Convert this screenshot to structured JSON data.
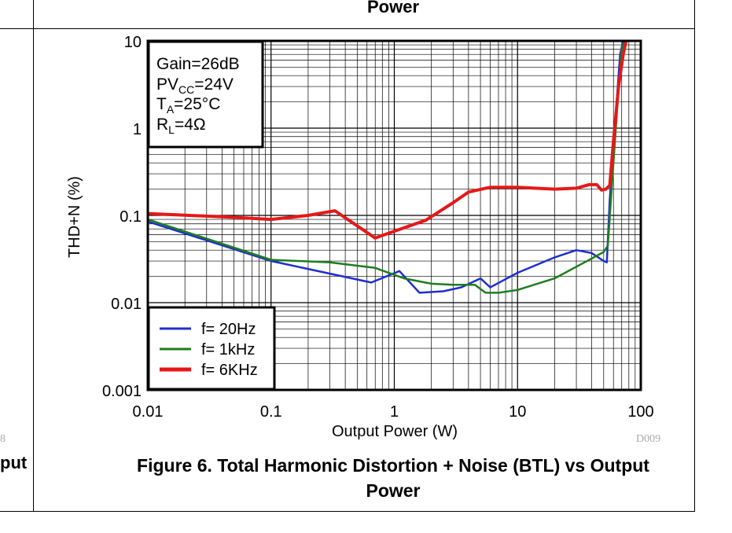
{
  "top_caption": "Power",
  "left_cut_word": "put",
  "left_cut_code": "8",
  "right_code": "D009",
  "caption": {
    "line1": "Figure 6. Total Harmonic Distortion + Noise (BTL) vs Output",
    "line2": "Power"
  },
  "chart_data": {
    "type": "line",
    "xlabel": "Output Power (W)",
    "ylabel": "THD+N (%)",
    "x_scale": "log",
    "y_scale": "log",
    "xlim": [
      0.01,
      100
    ],
    "ylim": [
      0.001,
      10
    ],
    "x_ticks": [
      "0.01",
      "0.1",
      "1",
      "10",
      "100"
    ],
    "y_ticks": [
      "0.001",
      "0.01",
      "0.1",
      "1",
      "10"
    ],
    "grid": true,
    "conditions": {
      "gain": "Gain=26dB",
      "pvcc_prefix": "PV",
      "pvcc_sub": "CC",
      "pvcc_value": "=24V",
      "ta_prefix": "T",
      "ta_sub": "A",
      "ta_value": "=25°C",
      "rl_prefix": "R",
      "rl_sub": "L",
      "rl_value": "=4Ω"
    },
    "legend_position": "bottom-left",
    "series": [
      {
        "name": "f= 20Hz",
        "color": "#1f2fcf",
        "points": [
          [
            0.01,
            0.085
          ],
          [
            0.1,
            0.03
          ],
          [
            0.65,
            0.017
          ],
          [
            1.1,
            0.023
          ],
          [
            1.6,
            0.013
          ],
          [
            2.5,
            0.0135
          ],
          [
            3.5,
            0.015
          ],
          [
            5,
            0.019
          ],
          [
            6,
            0.015
          ],
          [
            10,
            0.022
          ],
          [
            20,
            0.033
          ],
          [
            30,
            0.04
          ],
          [
            40,
            0.037
          ],
          [
            50,
            0.03
          ],
          [
            53,
            0.029
          ],
          [
            56,
            0.15
          ],
          [
            62,
            1.2
          ],
          [
            68,
            7
          ],
          [
            72,
            12
          ]
        ]
      },
      {
        "name": "f= 1kHz",
        "color": "#1e7d1e",
        "points": [
          [
            0.01,
            0.09
          ],
          [
            0.1,
            0.031
          ],
          [
            0.3,
            0.029
          ],
          [
            0.7,
            0.025
          ],
          [
            1.2,
            0.019
          ],
          [
            2,
            0.0165
          ],
          [
            3,
            0.016
          ],
          [
            4.5,
            0.016
          ],
          [
            5.5,
            0.013
          ],
          [
            7,
            0.013
          ],
          [
            10,
            0.014
          ],
          [
            20,
            0.019
          ],
          [
            35,
            0.029
          ],
          [
            50,
            0.038
          ],
          [
            54,
            0.045
          ],
          [
            58,
            0.2
          ],
          [
            64,
            1.5
          ],
          [
            70,
            8
          ],
          [
            74,
            12
          ]
        ]
      },
      {
        "name": "f= 6KHz",
        "color": "#e61818",
        "points": [
          [
            0.01,
            0.105
          ],
          [
            0.05,
            0.095
          ],
          [
            0.1,
            0.09
          ],
          [
            0.2,
            0.1
          ],
          [
            0.33,
            0.113
          ],
          [
            0.7,
            0.055
          ],
          [
            1.2,
            0.072
          ],
          [
            1.8,
            0.088
          ],
          [
            3,
            0.14
          ],
          [
            4,
            0.185
          ],
          [
            6,
            0.21
          ],
          [
            10,
            0.21
          ],
          [
            20,
            0.2
          ],
          [
            30,
            0.205
          ],
          [
            38,
            0.225
          ],
          [
            44,
            0.225
          ],
          [
            48,
            0.195
          ],
          [
            52,
            0.2
          ],
          [
            56,
            0.22
          ],
          [
            60,
            0.7
          ],
          [
            66,
            3
          ],
          [
            72,
            7
          ],
          [
            76,
            12
          ]
        ]
      }
    ]
  }
}
